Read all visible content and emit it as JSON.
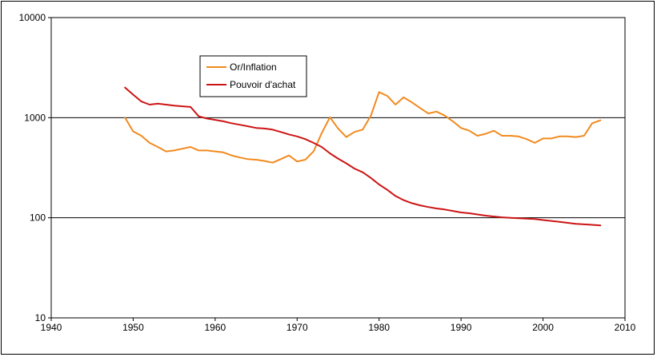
{
  "chart_data": {
    "type": "line",
    "title": "",
    "xlabel": "",
    "ylabel": "",
    "xlim": [
      1940,
      2010
    ],
    "ylim": [
      10,
      10000
    ],
    "yscale": "log",
    "xticks": [
      "1940",
      "1950",
      "1960",
      "1970",
      "1980",
      "1990",
      "2000",
      "2010"
    ],
    "yticks": [
      "10",
      "100",
      "1000",
      "10000"
    ],
    "grid": "horizontal",
    "legend_position": "top-left-inside",
    "colors": {
      "Or/Inflation": "#f28a1e",
      "Pouvoir d'achat": "#cc1414"
    },
    "series": [
      {
        "name": "Or/Inflation",
        "x": [
          1949,
          1950,
          1951,
          1952,
          1953,
          1954,
          1955,
          1956,
          1957,
          1958,
          1959,
          1960,
          1961,
          1962,
          1963,
          1964,
          1965,
          1966,
          1967,
          1968,
          1969,
          1970,
          1971,
          1972,
          1973,
          1974,
          1975,
          1976,
          1977,
          1978,
          1979,
          1980,
          1981,
          1982,
          1983,
          1984,
          1985,
          1986,
          1987,
          1988,
          1989,
          1990,
          1991,
          1992,
          1993,
          1994,
          1995,
          1996,
          1997,
          1998,
          1999,
          2000,
          2001,
          2002,
          2003,
          2004,
          2005,
          2006,
          2007
        ],
        "values": [
          1000,
          730,
          660,
          560,
          510,
          460,
          470,
          490,
          510,
          470,
          470,
          460,
          450,
          420,
          400,
          385,
          380,
          370,
          355,
          385,
          420,
          365,
          380,
          460,
          700,
          1010,
          780,
          640,
          720,
          760,
          1050,
          1800,
          1650,
          1350,
          1600,
          1420,
          1250,
          1100,
          1150,
          1050,
          920,
          790,
          740,
          660,
          690,
          740,
          660,
          660,
          650,
          610,
          560,
          620,
          620,
          650,
          650,
          640,
          660,
          880,
          940
        ]
      },
      {
        "name": "Pouvoir d'achat",
        "x": [
          1949,
          1950,
          1951,
          1952,
          1953,
          1954,
          1955,
          1956,
          1957,
          1958,
          1959,
          1960,
          1961,
          1962,
          1963,
          1964,
          1965,
          1966,
          1967,
          1968,
          1969,
          1970,
          1971,
          1972,
          1973,
          1974,
          1975,
          1976,
          1977,
          1978,
          1979,
          1980,
          1981,
          1982,
          1983,
          1984,
          1985,
          1986,
          1987,
          1988,
          1989,
          1990,
          1991,
          1992,
          1993,
          1994,
          1995,
          1996,
          1997,
          1998,
          1999,
          2000,
          2001,
          2002,
          2003,
          2004,
          2005,
          2006,
          2007
        ],
        "values": [
          2000,
          1700,
          1450,
          1350,
          1380,
          1350,
          1320,
          1300,
          1280,
          1030,
          980,
          950,
          920,
          880,
          850,
          820,
          790,
          780,
          760,
          720,
          680,
          650,
          610,
          560,
          510,
          440,
          390,
          350,
          310,
          285,
          250,
          215,
          190,
          165,
          150,
          140,
          133,
          128,
          124,
          121,
          117,
          113,
          111,
          108,
          105,
          103,
          101,
          100,
          99,
          98,
          97,
          95,
          93,
          91,
          89,
          87,
          86,
          85,
          84
        ]
      }
    ]
  }
}
